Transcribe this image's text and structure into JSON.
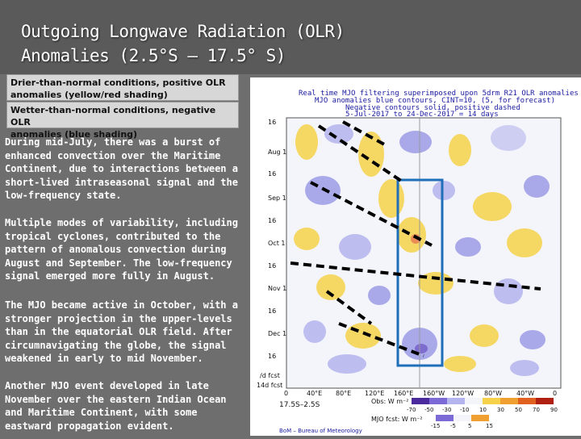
{
  "title": {
    "line1": "Outgoing Longwave Radiation (OLR)",
    "line2": "Anomalies (2.5°S – 17.5° S)"
  },
  "legend": {
    "positive": {
      "line1": "Drier-than-normal conditions, positive OLR",
      "line2": "anomalies (yellow/red shading)"
    },
    "negative": {
      "line1": "Wetter-than-normal conditions, negative OLR",
      "line2": "anomalies (blue shading)"
    }
  },
  "paragraphs": [
    "During mid-July, there was a burst of enhanced convection over the Maritime Continent, due to interactions between a short-lived intraseasonal signal and the low-frequency state.",
    "Multiple modes of variability, including tropical cyclones, contributed to the pattern of anomalous convection during August and September. The low-frequency signal emerged more fully in August.",
    "The MJO became active in October, with a stronger projection in the upper-levels than in the equatorial OLR field. After circumnavigating the globe, the signal weakened in early to mid November.",
    "Another MJO event developed in late November over the eastern Indian Ocean and Maritime Continent, with some eastward propagation evident."
  ],
  "chart_header": {
    "line1": "Real time MJO filtering superimposed upon 5drm R21 OLR anomalies",
    "line2": "MJO anomalies blue contours, CINT=10, (5, for forecast)",
    "line3": "Negative contours solid, positive dashed",
    "line4": "5-Jul-2017 to 24-Dec-2017 = 14 days"
  },
  "chart_yticks": [
    "16",
    "Aug 1",
    "16",
    "Sep 1",
    "16",
    "Oct 1",
    "16",
    "Nov 1",
    "16",
    "Dec 1",
    "16",
    "/d fcst",
    "14d fcst"
  ],
  "chart_xticks": [
    "0",
    "40°E",
    "80°E",
    "120°E",
    "160°E",
    "160°W",
    "120°W",
    "80°W",
    "40°W",
    "0"
  ],
  "chart_scale": {
    "left_label": "17.5S–2.5S",
    "obs_label": "Obs: W m⁻²",
    "obs_values": [
      "-70",
      "-50",
      "-30",
      "-10",
      "10",
      "30",
      "50",
      "70",
      "90"
    ],
    "mjo_label": "MJO fcst: W m⁻²",
    "mjo_values": [
      "-15",
      "-5",
      "5",
      "15"
    ],
    "credit": "BoM – Bureau of Meteorology"
  },
  "colors": {
    "blue_box": "#1e6fb8",
    "dash": "#000000"
  }
}
